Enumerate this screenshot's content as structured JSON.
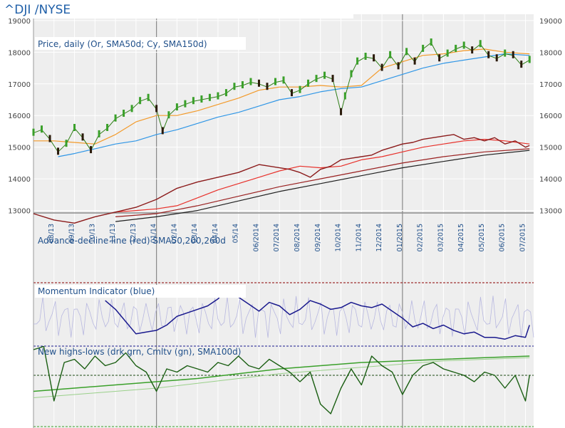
{
  "header": {
    "symbol_title": "^DJI /NYSE"
  },
  "chart_data": [
    {
      "type": "line",
      "title": "Price, daily (Or, SMA50d; Cy, SMA150d)",
      "y_ticks": [
        13000,
        14000,
        15000,
        16000,
        17000,
        18000,
        19000
      ],
      "y_tick_labels": [
        "13000",
        "14000",
        "15000",
        "16000",
        "17000",
        "18000",
        "19000"
      ],
      "ylim": [
        12900,
        19200
      ],
      "x_labels": [
        "08/13",
        "09/13",
        "10/13",
        "11/13",
        "12/13",
        "01/14",
        "02/14",
        "03/14",
        "04/14",
        "05/14",
        "06/2014",
        "07/2014",
        "08/2014",
        "09/2014",
        "10/2014",
        "11/2014",
        "12/2014",
        "01/2015",
        "02/2015",
        "03/2015",
        "04/2015",
        "05/2015",
        "06/2015",
        "07/2015"
      ],
      "x_months": [
        1,
        2,
        3,
        4,
        5,
        6,
        7,
        8,
        9,
        10,
        11,
        12,
        13,
        14,
        15,
        16,
        17,
        18,
        19,
        20,
        21,
        22,
        23,
        24
      ],
      "xlim": [
        0,
        24.4
      ],
      "year_dividers_at_month": [
        6,
        18
      ],
      "series": [
        {
          "name": "Price (candles)",
          "color": "#2e7d16",
          "x": [
            0,
            0.4,
            0.8,
            1.2,
            1.6,
            2.0,
            2.4,
            2.8,
            3.2,
            3.6,
            4.0,
            4.4,
            4.8,
            5.2,
            5.6,
            6.0,
            6.3,
            6.6,
            7.0,
            7.4,
            7.8,
            8.2,
            8.6,
            9.0,
            9.4,
            9.8,
            10.2,
            10.6,
            11.0,
            11.4,
            11.8,
            12.2,
            12.6,
            13.0,
            13.4,
            13.8,
            14.2,
            14.6,
            15.0,
            15.2,
            15.5,
            15.8,
            16.2,
            16.6,
            17.0,
            17.4,
            17.8,
            18.2,
            18.6,
            19.0,
            19.4,
            19.8,
            20.2,
            20.6,
            21.0,
            21.4,
            21.8,
            22.2,
            22.6,
            23.0,
            23.4,
            23.8,
            24.2
          ],
          "values": [
            15450,
            15550,
            15250,
            14850,
            15100,
            15600,
            15300,
            14900,
            15400,
            15600,
            15900,
            16050,
            16200,
            16450,
            16550,
            16200,
            15500,
            16000,
            16250,
            16350,
            16450,
            16500,
            16550,
            16600,
            16700,
            16900,
            16950,
            17050,
            17000,
            16900,
            17050,
            17100,
            16700,
            16800,
            17000,
            17150,
            17250,
            17150,
            16100,
            16600,
            17300,
            17700,
            17850,
            17800,
            17500,
            17900,
            17550,
            18000,
            17700,
            18100,
            18300,
            17800,
            17950,
            18100,
            18200,
            18050,
            18250,
            17900,
            17800,
            17950,
            17900,
            17600,
            17750
          ]
        },
        {
          "name": "SMA50d",
          "color": "#f39a2a",
          "x": [
            0,
            1,
            2,
            3,
            4,
            5,
            6,
            7,
            8,
            9,
            10,
            11,
            12,
            13,
            14,
            15,
            16,
            17,
            18,
            19,
            20,
            21,
            22,
            23,
            24.2
          ],
          "values": [
            15200,
            15200,
            15150,
            15100,
            15400,
            15800,
            16000,
            16000,
            16150,
            16350,
            16550,
            16800,
            16900,
            16900,
            16950,
            16900,
            16950,
            17500,
            17700,
            17900,
            17950,
            18050,
            18100,
            18000,
            17950
          ]
        },
        {
          "name": "SMA150d",
          "color": "#2f96e6",
          "x": [
            1.2,
            2,
            3,
            4,
            5,
            6,
            7,
            8,
            9,
            10,
            11,
            12,
            13,
            14,
            15,
            16,
            17,
            18,
            19,
            20,
            21,
            22,
            23,
            24.2
          ],
          "values": [
            14700,
            14800,
            14950,
            15100,
            15200,
            15400,
            15550,
            15750,
            15950,
            16100,
            16300,
            16500,
            16600,
            16750,
            16850,
            16900,
            17100,
            17300,
            17500,
            17650,
            17750,
            17850,
            17950,
            17900
          ]
        }
      ]
    },
    {
      "type": "line",
      "title": "Advance-decline line (red) SMA50,200,260d",
      "series": [
        {
          "name": "Advance-decline line",
          "color": "#8b1a1a",
          "x": [
            0,
            1,
            2,
            3,
            4,
            5,
            6,
            7,
            8,
            9,
            10,
            11,
            11.5,
            12,
            12.5,
            13,
            13.5,
            14,
            14.5,
            15,
            15.5,
            16,
            16.5,
            17,
            17.5,
            18,
            18.5,
            19,
            19.5,
            20,
            20.5,
            21,
            21.5,
            22,
            22.5,
            23,
            23.5,
            24,
            24.2
          ],
          "values": [
            12900,
            12700,
            12600,
            12800,
            12950,
            13100,
            13350,
            13700,
            13900,
            14050,
            14200,
            14450,
            14400,
            14350,
            14300,
            14200,
            14050,
            14300,
            14400,
            14600,
            14650,
            14700,
            14750,
            14900,
            15000,
            15100,
            15150,
            15250,
            15300,
            15350,
            15400,
            15250,
            15300,
            15200,
            15300,
            15100,
            15200,
            15000,
            15050
          ]
        },
        {
          "name": "SMA50d",
          "color": "#e8302a",
          "x": [
            4,
            5,
            6,
            7,
            8,
            9,
            10,
            11,
            12,
            13,
            14,
            15,
            16,
            17,
            18,
            19,
            20,
            21,
            22,
            23,
            24.2
          ],
          "values": [
            12950,
            13000,
            13050,
            13150,
            13400,
            13650,
            13850,
            14050,
            14250,
            14400,
            14350,
            14400,
            14600,
            14700,
            14850,
            15000,
            15100,
            15200,
            15250,
            15200,
            15100
          ]
        },
        {
          "name": "SMA200d",
          "color": "#9a2020",
          "x": [
            4,
            6,
            8,
            10,
            12,
            14,
            16,
            18,
            20,
            22,
            24.2
          ],
          "values": [
            12800,
            12900,
            13150,
            13450,
            13750,
            14000,
            14250,
            14500,
            14700,
            14850,
            14950
          ]
        },
        {
          "name": "SMA260d",
          "color": "#202020",
          "x": [
            4,
            6,
            8,
            10,
            12,
            14,
            16,
            18,
            20,
            22,
            24.2
          ],
          "values": [
            12650,
            12800,
            13000,
            13300,
            13600,
            13850,
            14100,
            14350,
            14550,
            14750,
            14900
          ]
        }
      ]
    },
    {
      "type": "line",
      "title": "Momentum Indicator (blue)",
      "series": [
        {
          "name": "Momentum",
          "color": "#1a1a8e",
          "x": [
            3.5,
            4,
            4.5,
            5,
            5.5,
            6,
            6.5,
            7,
            7.5,
            8,
            8.5,
            9,
            9.5,
            10,
            10.5,
            11,
            11.5,
            12,
            12.5,
            13,
            13.5,
            14,
            14.5,
            15,
            15.5,
            16,
            16.5,
            17,
            17.5,
            18,
            18.5,
            19,
            19.5,
            20,
            20.5,
            21,
            21.5,
            22,
            22.5,
            23,
            23.5,
            24,
            24.2
          ],
          "values": [
            1.1,
            0.6,
            -0.1,
            -0.8,
            -0.7,
            -0.6,
            -0.3,
            0.2,
            0.4,
            0.6,
            0.8,
            1.2,
            1.8,
            1.3,
            0.9,
            0.5,
            1.0,
            0.8,
            0.3,
            0.6,
            1.1,
            0.9,
            0.6,
            0.7,
            1.0,
            0.8,
            0.7,
            0.9,
            0.5,
            0.1,
            -0.4,
            -0.2,
            -0.5,
            -0.3,
            -0.6,
            -0.8,
            -0.7,
            -1.0,
            -1.0,
            -1.1,
            -0.9,
            -1.0,
            -0.3
          ]
        }
      ]
    },
    {
      "type": "line",
      "title": "New highs-lows (drk grn, Cmltv (gn), SMA100d)",
      "series": [
        {
          "name": "New highs-lows",
          "color": "#1a5e12",
          "x": [
            0,
            0.5,
            1,
            1.5,
            2,
            2.5,
            3,
            3.5,
            4,
            4.5,
            5,
            5.5,
            6,
            6.5,
            7,
            7.5,
            8,
            8.5,
            9,
            9.5,
            10,
            10.5,
            11,
            11.5,
            12,
            12.5,
            13,
            13.5,
            14,
            14.5,
            15,
            15.5,
            16,
            16.5,
            17,
            17.5,
            18,
            18.5,
            19,
            19.5,
            20,
            20.5,
            21,
            21.5,
            22,
            22.5,
            23,
            23.5,
            24,
            24.2
          ],
          "values": [
            0.8,
            0.9,
            -0.8,
            0.4,
            0.5,
            0.2,
            0.6,
            0.3,
            0.4,
            0.7,
            0.3,
            0.1,
            -0.5,
            0.2,
            0.1,
            0.3,
            0.2,
            0.1,
            0.4,
            0.3,
            0.6,
            0.3,
            0.2,
            0.5,
            0.3,
            0.1,
            -0.2,
            0.1,
            -0.9,
            -1.2,
            -0.4,
            0.2,
            -0.3,
            0.6,
            0.3,
            0.1,
            -0.6,
            0.0,
            0.3,
            0.4,
            0.2,
            0.1,
            0.0,
            -0.2,
            0.1,
            0.0,
            -0.4,
            0.0,
            -0.8,
            0.0
          ]
        },
        {
          "name": "Cumulative",
          "color": "#3aa02a",
          "x": [
            0,
            2,
            4,
            6,
            8,
            10,
            12,
            14,
            16,
            18,
            20,
            22,
            24.2
          ],
          "values": [
            -0.5,
            -0.4,
            -0.3,
            -0.2,
            -0.1,
            0.05,
            0.2,
            0.3,
            0.4,
            0.45,
            0.5,
            0.55,
            0.6
          ]
        },
        {
          "name": "SMA100d",
          "color": "#9ad08a",
          "x": [
            0,
            2,
            4,
            6,
            8,
            10,
            12,
            14,
            16,
            18,
            20,
            22,
            24.2
          ],
          "values": [
            -0.7,
            -0.6,
            -0.5,
            -0.4,
            -0.25,
            -0.1,
            0.05,
            0.15,
            0.25,
            0.35,
            0.45,
            0.5,
            0.55
          ]
        }
      ]
    }
  ]
}
